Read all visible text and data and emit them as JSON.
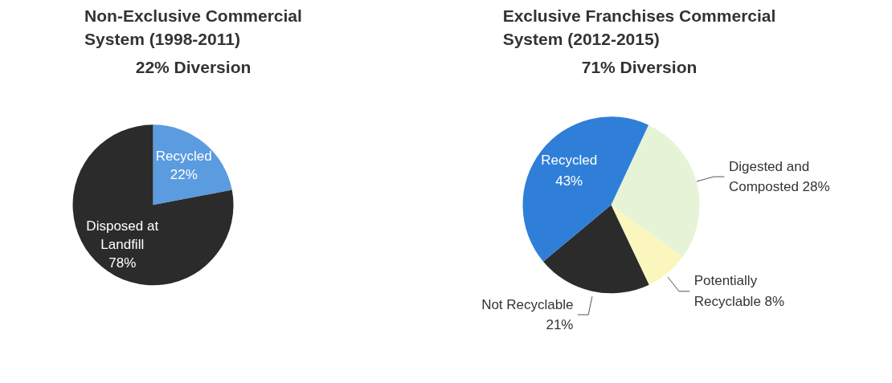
{
  "chart_data": [
    {
      "type": "pie",
      "title": "Non-Exclusive Commercial System (1998-2011)",
      "subtitle": "22% Diversion",
      "categories": [
        "Recycled",
        "Disposed at Landfill"
      ],
      "values": [
        22,
        78
      ],
      "colors": [
        "#5b9be0",
        "#2b2b2b"
      ],
      "value_labels": [
        "22%",
        "78%"
      ],
      "legend": false
    },
    {
      "type": "pie",
      "title": "Exclusive Franchises Commercial System (2012-2015)",
      "subtitle": "71% Diversion",
      "categories": [
        "Digested and Composted",
        "Potentially Recyclable",
        "Not Recyclable",
        "Recycled"
      ],
      "values": [
        28,
        8,
        21,
        43
      ],
      "colors": [
        "#e6f3d6",
        "#fbf6bd",
        "#2b2b2b",
        "#2f7fd8"
      ],
      "value_labels": [
        "28%",
        "8%",
        "21%",
        "43%"
      ],
      "legend": false
    }
  ]
}
